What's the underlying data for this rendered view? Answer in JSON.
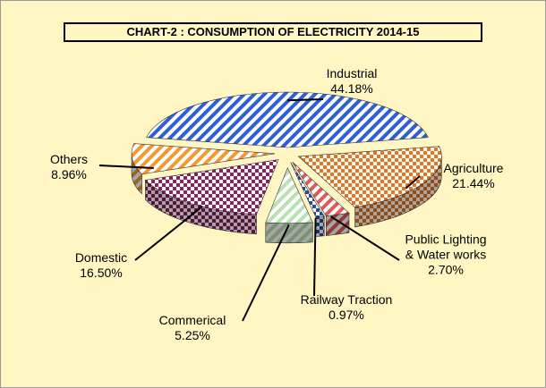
{
  "chart_data": {
    "type": "pie",
    "title": "CHART-2 : CONSUMPTION OF ELECTRICITY 2014-15",
    "categories": [
      "Industrial",
      "Agriculture",
      "Public Lighting & Water works",
      "Railway Traction",
      "Commerical",
      "Domestic",
      "Others"
    ],
    "values": [
      44.18,
      21.44,
      2.7,
      0.97,
      5.25,
      16.5,
      8.96
    ],
    "value_labels": [
      "44.18%",
      "21.44%",
      "2.70%",
      "0.97%",
      "5.25%",
      "16.50%",
      "8.96%"
    ],
    "colors": [
      "#2f5fd0",
      "#e8731a",
      "#e05a5a",
      "#2a4aa8",
      "#b9e0b0",
      "#8e1f5c",
      "#f09a30"
    ]
  }
}
